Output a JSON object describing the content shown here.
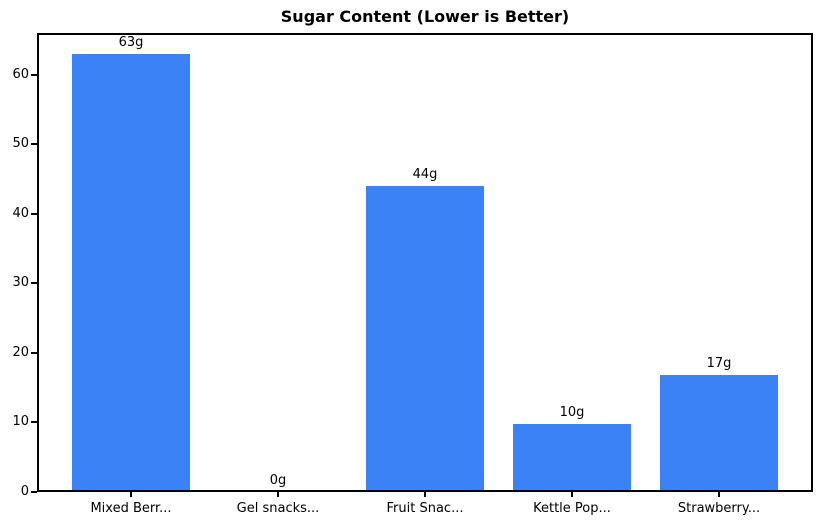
{
  "figure": {
    "background_color": "#ffffff",
    "axis_color": "#000000",
    "text_color": "#000000"
  },
  "chart_data": {
    "type": "bar",
    "title": "Sugar Content (Lower is Better)",
    "categories": [
      "Mixed Berr...",
      "Gel snacks...",
      "Fruit Snac...",
      "Kettle Pop...",
      "Strawberry..."
    ],
    "values": [
      63,
      0,
      44,
      9.8,
      16.8
    ],
    "bar_labels": [
      "63g",
      "0g",
      "44g",
      "10g",
      "17g"
    ],
    "xlabel": "",
    "ylabel": "",
    "ylim": [
      0,
      66
    ],
    "yticks": [
      0,
      10,
      20,
      30,
      40,
      50,
      60
    ],
    "bar_color": "#3b82f6",
    "grid": false,
    "legend": null
  }
}
